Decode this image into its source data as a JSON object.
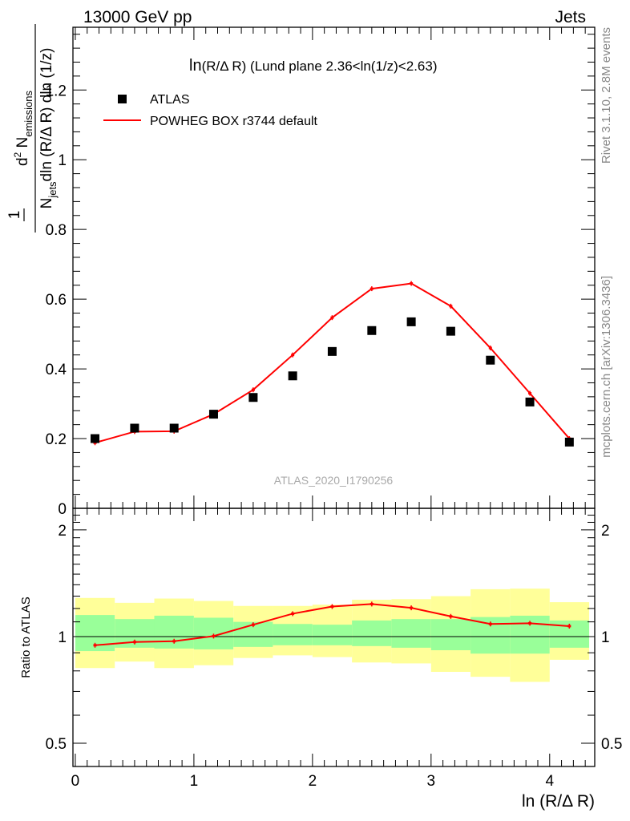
{
  "header": {
    "left": "13000 GeV pp",
    "right": "Jets"
  },
  "side_labels": {
    "rivet": "Rivet 3.1.10,  2.8M events",
    "mcplots": "mcplots.cern.ch [arXiv:1306.3436]"
  },
  "chart_data": [
    {
      "type": "scatter",
      "title_main": "ln",
      "title_rest": "(R/Δ R) (Lund plane 2.36<ln(1/z)<2.63)",
      "ylabel": {
        "one": "1",
        "njets_N": "N",
        "njets_sub": "jets",
        "dln": "dln (R/Δ R) dln (1/z)",
        "d2": "d",
        "d2_sup": "2",
        "N": " N",
        "emissions_sub": "emissions"
      },
      "watermark": "ATLAS_2020_I1790256",
      "ylim": [
        0,
        1.38
      ],
      "xlim": [
        -0.02,
        4.38
      ],
      "yticks": [
        "0",
        "0.2",
        "0.4",
        "0.6",
        "0.8",
        "1",
        "1.2"
      ],
      "legend": {
        "placement": "top-left",
        "data_label": "ATLAS",
        "mc_label": "POWHEG BOX r3744 default",
        "mc_color": "#ff0000"
      },
      "x": [
        0.166,
        0.5,
        0.833,
        1.166,
        1.5,
        1.833,
        2.166,
        2.5,
        2.833,
        3.166,
        3.5,
        3.833,
        4.166
      ],
      "series": [
        {
          "name": "ATLAS",
          "values": [
            0.2,
            0.23,
            0.23,
            0.27,
            0.318,
            0.38,
            0.45,
            0.51,
            0.535,
            0.508,
            0.425,
            0.305,
            0.19
          ]
        },
        {
          "name": "POWHEG BOX r3744 default",
          "values": [
            0.188,
            0.22,
            0.221,
            0.27,
            0.34,
            0.44,
            0.547,
            0.63,
            0.645,
            0.58,
            0.46,
            0.33,
            0.2
          ]
        }
      ]
    },
    {
      "type": "line",
      "ylabel": "Ratio to ATLAS",
      "xlabel": "ln (R/Δ R)",
      "xticks": [
        "0",
        "1",
        "2",
        "3",
        "4"
      ],
      "yticks": [
        "0.5",
        "1",
        "2"
      ],
      "ylim": [
        0.43,
        2.3
      ],
      "log_scale_y": true,
      "bin_edges": [
        0,
        0.333,
        0.666,
        1.0,
        1.333,
        1.666,
        2.0,
        2.333,
        2.666,
        3.0,
        3.333,
        3.666,
        4.0,
        4.333
      ],
      "band_inner": {
        "color": "#99ff99",
        "low": [
          0.91,
          0.93,
          0.925,
          0.92,
          0.935,
          0.945,
          0.945,
          0.94,
          0.93,
          0.915,
          0.895,
          0.895,
          0.93
        ],
        "high": [
          1.15,
          1.12,
          1.145,
          1.13,
          1.1,
          1.085,
          1.08,
          1.11,
          1.12,
          1.12,
          1.135,
          1.145,
          1.11
        ]
      },
      "band_outer": {
        "color": "#ffff99",
        "low": [
          0.815,
          0.85,
          0.815,
          0.83,
          0.87,
          0.885,
          0.875,
          0.845,
          0.84,
          0.795,
          0.77,
          0.745,
          0.86
        ],
        "high": [
          1.285,
          1.245,
          1.28,
          1.26,
          1.22,
          1.22,
          1.23,
          1.27,
          1.275,
          1.3,
          1.36,
          1.365,
          1.25
        ]
      },
      "series": [
        {
          "name": "POWHEG BOX r3744 default",
          "values": [
            0.945,
            0.965,
            0.97,
            1.003,
            1.08,
            1.16,
            1.215,
            1.235,
            1.205,
            1.14,
            1.085,
            1.09,
            1.07
          ]
        }
      ],
      "reference": 1.0
    }
  ]
}
